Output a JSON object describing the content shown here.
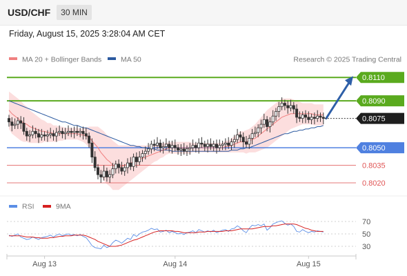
{
  "header": {
    "symbol": "USD/CHF",
    "timeframe": "30 MIN",
    "datetime": "Friday, August 15, 2025 3:28:04 AM CET"
  },
  "chart_data": {
    "type": "candlestick",
    "legend": [
      {
        "label": "MA 20 + Bollinger Bands",
        "color": "#f08080"
      },
      {
        "label": "MA 50",
        "color": "#2c5aa0"
      }
    ],
    "credit": "Research © 2025 Trading Central",
    "x_tick_labels": [
      "Aug 13",
      "Aug 14",
      "Aug 15"
    ],
    "ylim": [
      0.801,
      0.8116
    ],
    "current_price": {
      "label": "0.8075",
      "value": 0.8075
    },
    "levels": [
      {
        "label": "0.8110",
        "value": 0.811,
        "kind": "resistance",
        "color": "#5aaa1e"
      },
      {
        "label": "0.8090",
        "value": 0.809,
        "kind": "resistance",
        "color": "#5aaa1e"
      },
      {
        "label": "0.8050",
        "value": 0.805,
        "kind": "pivot",
        "color": "#4f80e0"
      },
      {
        "label": "0.8035",
        "value": 0.8035,
        "kind": "support",
        "color": "#e05555"
      },
      {
        "label": "0.8020",
        "value": 0.802,
        "kind": "support",
        "color": "#e05555"
      }
    ],
    "projection": {
      "from": 0.8075,
      "to": 0.811,
      "color": "#2e5fa8"
    },
    "closes": [
      0.8072,
      0.8069,
      0.807,
      0.8073,
      0.8071,
      0.8064,
      0.806,
      0.8061,
      0.8064,
      0.8062,
      0.8059,
      0.8061,
      0.806,
      0.8061,
      0.8062,
      0.806,
      0.8063,
      0.8064,
      0.8062,
      0.8063,
      0.8064,
      0.8063,
      0.8064,
      0.8063,
      0.8064,
      0.8062,
      0.806,
      0.8054,
      0.8042,
      0.8033,
      0.8027,
      0.8025,
      0.803,
      0.8025,
      0.8027,
      0.8032,
      0.8036,
      0.8033,
      0.803,
      0.8033,
      0.8037,
      0.8034,
      0.8042,
      0.8038,
      0.8042,
      0.8045,
      0.8047,
      0.8049,
      0.8053,
      0.8052,
      0.8054,
      0.805,
      0.8051,
      0.8053,
      0.805,
      0.8052,
      0.805,
      0.8048,
      0.8049,
      0.8047,
      0.8049,
      0.805,
      0.8052,
      0.805,
      0.8054,
      0.8053,
      0.8051,
      0.8053,
      0.8051,
      0.8053,
      0.805,
      0.8052,
      0.8053,
      0.8054,
      0.8052,
      0.8055,
      0.8057,
      0.8061,
      0.8059,
      0.8055,
      0.8053,
      0.8058,
      0.8062,
      0.8063,
      0.8067,
      0.807,
      0.8074,
      0.8068,
      0.8072,
      0.8077,
      0.8081,
      0.8085,
      0.8088,
      0.8086,
      0.8084,
      0.8086,
      0.8083,
      0.8076,
      0.8075,
      0.8078,
      0.8076,
      0.8074,
      0.8076,
      0.8075,
      0.8077,
      0.8076,
      0.8075
    ],
    "ma20": [
      0.8082,
      0.8079,
      0.8077,
      0.8075,
      0.8073,
      0.8071,
      0.807,
      0.8068,
      0.8067,
      0.8066,
      0.8065,
      0.8064,
      0.8064,
      0.8063,
      0.8063,
      0.8062,
      0.8062,
      0.8062,
      0.8062,
      0.8062,
      0.8062,
      0.8062,
      0.8062,
      0.8062,
      0.8061,
      0.8061,
      0.806,
      0.8059,
      0.8056,
      0.8053,
      0.805,
      0.8046,
      0.8043,
      0.804,
      0.8038,
      0.8035,
      0.8034,
      0.8033,
      0.8034,
      0.8035,
      0.8036,
      0.8037,
      0.8038,
      0.8039,
      0.804,
      0.8041,
      0.8042,
      0.8043,
      0.8044,
      0.8045,
      0.8046,
      0.8047,
      0.8048,
      0.8049,
      0.805,
      0.805,
      0.805,
      0.805,
      0.805,
      0.805,
      0.805,
      0.805,
      0.805,
      0.805,
      0.805,
      0.805,
      0.805,
      0.805,
      0.805,
      0.805,
      0.805,
      0.805,
      0.805,
      0.8051,
      0.8051,
      0.8052,
      0.8053,
      0.8054,
      0.8055,
      0.8055,
      0.8055,
      0.8056,
      0.8057,
      0.8058,
      0.806,
      0.8062,
      0.8064,
      0.8066,
      0.8068,
      0.807,
      0.8072,
      0.8074,
      0.8076,
      0.8077,
      0.8078,
      0.8079,
      0.8079,
      0.8079,
      0.8079,
      0.8079,
      0.8079,
      0.8079,
      0.8079,
      0.8078,
      0.8078,
      0.8078,
      0.8078
    ],
    "bb_width": [
      0.0016,
      0.0017,
      0.0017,
      0.0017,
      0.0017,
      0.0016,
      0.0015,
      0.0014,
      0.0013,
      0.0012,
      0.0011,
      0.001,
      0.0009,
      0.0008,
      0.0008,
      0.0007,
      0.0007,
      0.0006,
      0.0006,
      0.0005,
      0.0005,
      0.0005,
      0.0005,
      0.0005,
      0.0005,
      0.0006,
      0.0007,
      0.0009,
      0.0012,
      0.0015,
      0.0018,
      0.002,
      0.0021,
      0.0021,
      0.0021,
      0.0021,
      0.002,
      0.0019,
      0.0018,
      0.0017,
      0.0016,
      0.0015,
      0.0014,
      0.0013,
      0.0012,
      0.0011,
      0.001,
      0.0009,
      0.0008,
      0.0007,
      0.0007,
      0.0006,
      0.0006,
      0.0005,
      0.0005,
      0.0005,
      0.0005,
      0.0005,
      0.0005,
      0.0005,
      0.0005,
      0.0005,
      0.0004,
      0.0004,
      0.0004,
      0.0004,
      0.0004,
      0.0004,
      0.0004,
      0.0004,
      0.0004,
      0.0004,
      0.0004,
      0.0005,
      0.0005,
      0.0006,
      0.0007,
      0.0008,
      0.0009,
      0.0009,
      0.001,
      0.001,
      0.0011,
      0.0012,
      0.0013,
      0.0014,
      0.0015,
      0.0016,
      0.0016,
      0.0016,
      0.0016,
      0.0016,
      0.0016,
      0.0015,
      0.0014,
      0.0013,
      0.0012,
      0.0011,
      0.001,
      0.0009,
      0.0009,
      0.0009,
      0.0009,
      0.0009,
      0.0009,
      0.0009,
      0.0009
    ],
    "ma50": [
      0.809,
      0.8089,
      0.8088,
      0.8087,
      0.8086,
      0.8085,
      0.8084,
      0.8083,
      0.8082,
      0.8081,
      0.808,
      0.8079,
      0.8078,
      0.8077,
      0.8076,
      0.8075,
      0.8074,
      0.8073,
      0.8072,
      0.8072,
      0.8071,
      0.807,
      0.8069,
      0.8069,
      0.8068,
      0.8067,
      0.8067,
      0.8066,
      0.8065,
      0.8064,
      0.8063,
      0.8062,
      0.8061,
      0.806,
      0.8059,
      0.8058,
      0.8057,
      0.8056,
      0.8055,
      0.8054,
      0.8053,
      0.8052,
      0.8052,
      0.8051,
      0.8051,
      0.805,
      0.805,
      0.8049,
      0.8049,
      0.8049,
      0.8048,
      0.8048,
      0.8048,
      0.8048,
      0.8048,
      0.8047,
      0.8047,
      0.8047,
      0.8047,
      0.8047,
      0.8047,
      0.8047,
      0.8047,
      0.8047,
      0.8047,
      0.8047,
      0.8047,
      0.8047,
      0.8047,
      0.8047,
      0.8047,
      0.8047,
      0.8047,
      0.8047,
      0.8047,
      0.8048,
      0.8048,
      0.8048,
      0.8049,
      0.8049,
      0.805,
      0.805,
      0.8051,
      0.8052,
      0.8053,
      0.8054,
      0.8055,
      0.8056,
      0.8057,
      0.8058,
      0.8059,
      0.806,
      0.8061,
      0.8062,
      0.8062,
      0.8063,
      0.8064,
      0.8064,
      0.8065,
      0.8065,
      0.8066,
      0.8066,
      0.8067,
      0.8067,
      0.8068,
      0.8068,
      0.8069
    ],
    "rsi": {
      "legend": [
        {
          "label": "RSI",
          "color": "#5b8ee6"
        },
        {
          "label": "9MA",
          "color": "#d62020"
        }
      ],
      "ticks": [
        "70",
        "50",
        "30"
      ],
      "ylim": [
        20,
        80
      ],
      "rsi": [
        48,
        46,
        48,
        50,
        45,
        43,
        41,
        42,
        45,
        43,
        41,
        44,
        45,
        46,
        48,
        45,
        48,
        50,
        47,
        49,
        50,
        48,
        49,
        47,
        49,
        46,
        44,
        38,
        31,
        28,
        27,
        26,
        32,
        28,
        30,
        36,
        40,
        38,
        35,
        39,
        43,
        41,
        49,
        46,
        50,
        53,
        54,
        56,
        59,
        57,
        58,
        53,
        54,
        56,
        52,
        54,
        52,
        50,
        51,
        49,
        52,
        53,
        55,
        52,
        57,
        55,
        53,
        55,
        53,
        56,
        52,
        54,
        56,
        57,
        54,
        58,
        59,
        63,
        60,
        55,
        52,
        59,
        64,
        63,
        65,
        63,
        66,
        56,
        60,
        66,
        68,
        70,
        71,
        67,
        64,
        66,
        62,
        54,
        53,
        57,
        54,
        52,
        54,
        53,
        55,
        54,
        53
      ],
      "ma9": [
        47,
        47,
        47,
        47,
        47,
        46,
        45,
        45,
        45,
        44,
        44,
        43,
        43,
        43,
        44,
        44,
        45,
        46,
        46,
        47,
        47,
        47,
        48,
        48,
        48,
        48,
        47,
        45,
        43,
        41,
        38,
        36,
        34,
        32,
        30,
        30,
        30,
        31,
        32,
        34,
        36,
        38,
        40,
        41,
        43,
        45,
        47,
        49,
        51,
        53,
        54,
        55,
        55,
        55,
        55,
        55,
        54,
        54,
        53,
        52,
        52,
        52,
        52,
        52,
        53,
        53,
        53,
        54,
        54,
        54,
        54,
        54,
        54,
        55,
        55,
        55,
        56,
        57,
        58,
        58,
        58,
        58,
        58,
        59,
        60,
        61,
        62,
        62,
        62,
        63,
        63,
        64,
        65,
        66,
        66,
        66,
        66,
        65,
        63,
        61,
        59,
        58,
        56,
        55,
        54,
        54,
        54
      ]
    }
  }
}
